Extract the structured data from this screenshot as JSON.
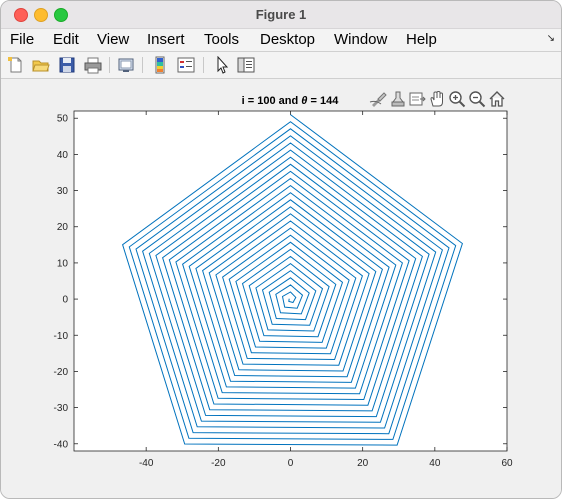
{
  "window": {
    "title": "Figure 1"
  },
  "menubar": {
    "items": [
      "File",
      "Edit",
      "View",
      "Insert",
      "Tools",
      "Desktop",
      "Window",
      "Help"
    ],
    "arrow": "↘"
  },
  "toolbar": {
    "tools": [
      "new-figure-icon",
      "open-file-icon",
      "save-icon",
      "print-icon",
      "link-figure-icon",
      "insert-colorbar-icon",
      "insert-legend-icon",
      "pointer-icon",
      "property-inspector-icon"
    ]
  },
  "axes_toolbar": {
    "tools": [
      "brush-icon",
      "data-tips-icon",
      "export-icon",
      "pan-icon",
      "zoom-in-icon",
      "zoom-out-icon",
      "home-icon"
    ]
  },
  "plot": {
    "title_prefix": "i = 100 and ",
    "title_theta": "θ",
    "title_suffix": " = 144",
    "line_color": "#0072bd"
  },
  "chart_data": {
    "type": "line",
    "title": "i = 100 and θ = 144",
    "xlabel": "",
    "ylabel": "",
    "xlim": [
      -60,
      60
    ],
    "ylim": [
      -42,
      52
    ],
    "xticks": [
      -40,
      -20,
      0,
      20,
      40,
      60
    ],
    "yticks": [
      -40,
      -30,
      -20,
      -10,
      0,
      10,
      20,
      30,
      40,
      50
    ],
    "grid": false,
    "series": [
      {
        "description_kind": "spiral star path",
        "turn_angle_deg": 144,
        "iterations": 100,
        "outer_vertices": [
          [
            0,
            51
          ],
          [
            -30,
            -41
          ],
          [
            48,
            15.5
          ],
          [
            -48,
            15.5
          ],
          [
            30,
            -41
          ]
        ],
        "inner_vertices_approx": [
          [
            0,
            1
          ],
          [
            -1,
            0
          ],
          [
            1,
            0
          ]
        ]
      }
    ]
  }
}
